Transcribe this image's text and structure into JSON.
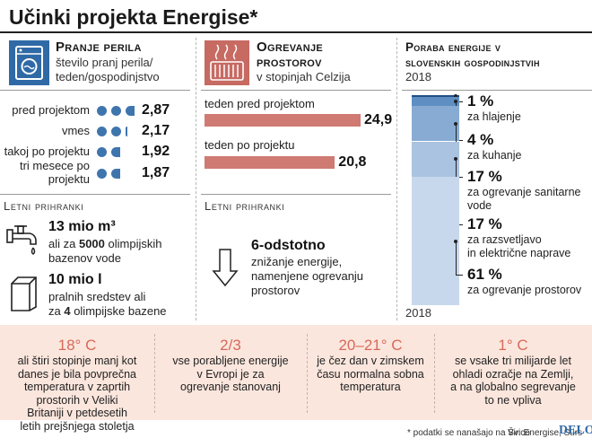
{
  "title": "Učinki projekta Energise*",
  "laundry": {
    "heading": "Pranje perila",
    "subtitle_line1": "število pranj perila/",
    "subtitle_line2": "teden/gospodinjstvo",
    "savings_heading": "Letni prihranki",
    "water_value": "13 mio m³",
    "water_text_1a": "ali za ",
    "water_text_1b": "5000",
    "water_text_1c": " olimpijskih",
    "water_text_2": "bazenov vode",
    "detergent_value": "10 mio l",
    "detergent_text_1": "pralnih sredstev ali",
    "detergent_text_2a": "za ",
    "detergent_text_2b": "4",
    "detergent_text_2c": " olimpijske bazene"
  },
  "heating": {
    "heading_line1": "Ogrevanje",
    "heading_line2": "prostorov",
    "subtitle": "v stopinjah Celzija",
    "savings_heading": "Letni prihranki",
    "reduction_value": "6-odstotno",
    "reduction_text_1": "znižanje energije,",
    "reduction_text_2": "namenjene ogrevanju",
    "reduction_text_3": "prostorov"
  },
  "energy": {
    "heading_line1": "Poraba energije v",
    "heading_line2": "slovenskih gospodinjstvih",
    "year_top": "2018",
    "year_bottom": "2018"
  },
  "stats": [
    {
      "number": "18° C",
      "lines": [
        "ali štiri stopinje manj kot",
        "danes je bila povprečna",
        "temperatura v zaprtih",
        "prostorih v Veliki",
        "Britaniji v petdesetih",
        "letih prejšnjega stoletja"
      ]
    },
    {
      "number": "2/3",
      "lines": [
        "vse porabljene energije",
        "v Evropi je za",
        "ogrevanje stanovanj"
      ]
    },
    {
      "number": "20–21° C",
      "lines": [
        "je čez dan v zimskem",
        "času normalna sobna",
        "temperatura"
      ]
    },
    {
      "number": "1° C",
      "lines": [
        "se vsake tri milijarde let",
        "ohladi ozračje na Zemlji,",
        "a na globalno segrevanje",
        "to ne vpliva"
      ]
    }
  ],
  "footer": {
    "note": "* podatki se nanašajo na Švico",
    "source": "Vir: Energise, Surs",
    "brand": "DELO"
  },
  "colors": {
    "blue": "#2f6aa6",
    "red": "#c66a62",
    "bar": "#cf7b73",
    "band": "#fbe6dd",
    "accent": "#d76a5a"
  },
  "chart_data": [
    {
      "type": "bar",
      "categories": [
        "pred projektom",
        "vmes",
        "takoj po projektu",
        "tri mesece po projektu"
      ],
      "labels_lines": [
        [
          "pred projektom"
        ],
        [
          "vmes"
        ],
        [
          "takoj po projektu"
        ],
        [
          "tri mesece po",
          "projektu"
        ]
      ],
      "values": [
        2.87,
        2.17,
        1.92,
        1.87
      ],
      "value_labels": [
        "2,87",
        "2,17",
        "1,92",
        "1,87"
      ]
    },
    {
      "type": "bar",
      "categories": [
        "teden pred projektom",
        "teden po projektu"
      ],
      "values": [
        24.9,
        20.8
      ],
      "value_labels": [
        "24,9",
        "20,8"
      ]
    },
    {
      "type": "bar",
      "categories": [
        "za hlajenje",
        "za kuhanje",
        "za ogrevanje sanitarne vode",
        "za razsvetljavo in električne naprave",
        "za ogrevanje prostorov"
      ],
      "label_lines": [
        [
          "za hlajenje"
        ],
        [
          "za kuhanje"
        ],
        [
          "za ogrevanje sanitarne",
          "vode"
        ],
        [
          "za razsvetljavo",
          "in električne naprave"
        ],
        [
          "za ogrevanje prostorov"
        ]
      ],
      "values": [
        1,
        4,
        17,
        17,
        61
      ],
      "value_labels": [
        "1 %",
        "4 %",
        "17 %",
        "17 %",
        "61 %"
      ],
      "colors": [
        "#1f4f86",
        "#5f8fc2",
        "#88abd3",
        "#a9c3e0",
        "#c8d8ec"
      ]
    }
  ]
}
